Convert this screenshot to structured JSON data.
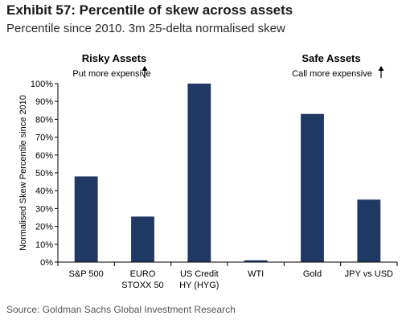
{
  "header": {
    "title": "Exhibit 57: Percentile of skew across assets",
    "subtitle": "Percentile since 2010. 3m 25-delta normalised skew"
  },
  "source": "Source: Goldman Sachs Global Investment Research",
  "chart_data": {
    "type": "bar",
    "categories": [
      [
        "S&P 500"
      ],
      [
        "EURO",
        "STOXX 50"
      ],
      [
        "US Credit",
        "HY (HYG)"
      ],
      [
        "WTI"
      ],
      [
        "Gold"
      ],
      [
        "JPY vs USD"
      ]
    ],
    "values": [
      48,
      25.5,
      100,
      1,
      83,
      35
    ],
    "ylabel": "Normalised Skew Percentile since 2010",
    "ylim": [
      0,
      100
    ],
    "yticks": [
      "0%",
      "10%",
      "20%",
      "30%",
      "40%",
      "50%",
      "60%",
      "70%",
      "80%",
      "90%",
      "100%"
    ],
    "bar_color": "#1f3864",
    "annotations": {
      "risky_title": "Risky Assets",
      "risky_sub": "Put more expensive",
      "safe_title": "Safe Assets",
      "safe_sub": "Call more expensive"
    }
  }
}
